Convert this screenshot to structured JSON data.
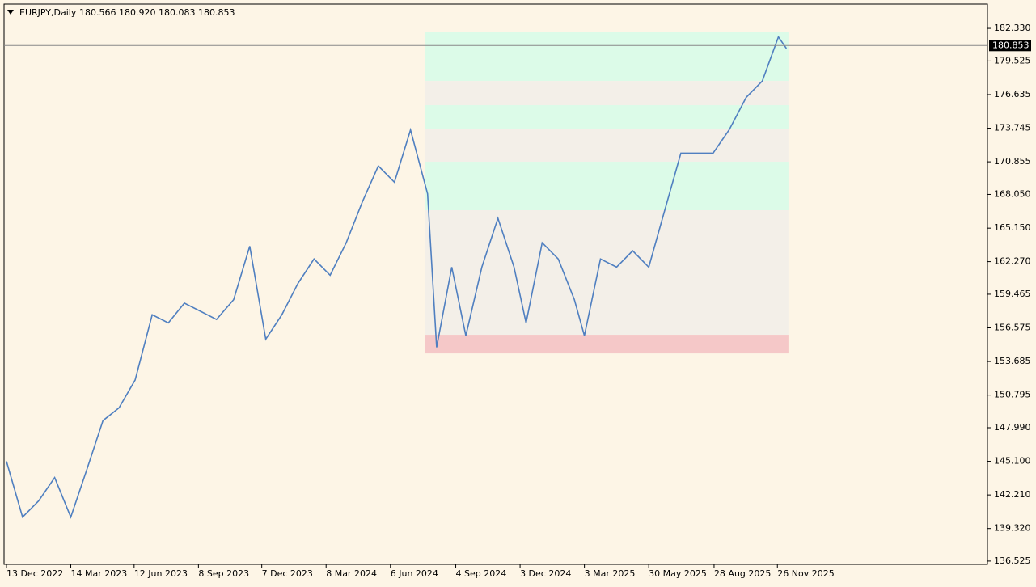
{
  "chart_data": {
    "type": "line",
    "title": "EURJPY,Daily",
    "ohlc": "180.566 180.920 180.083 180.853",
    "last_price": 180.853,
    "color": "#4f7fc0",
    "x": [
      0,
      16,
      32,
      48,
      64,
      80,
      96,
      112,
      128,
      145,
      161,
      177,
      193,
      209,
      226,
      242,
      258,
      274,
      290,
      306,
      322,
      338,
      354,
      370,
      386,
      402,
      419,
      428,
      443,
      457,
      473,
      489,
      505,
      517,
      533,
      549,
      565,
      575,
      591,
      607,
      623,
      639,
      655,
      671,
      687,
      703,
      719,
      736,
      752,
      768,
      776
    ],
    "values": [
      145.1,
      140.3,
      141.7,
      143.7,
      140.3,
      144.4,
      148.6,
      149.7,
      152.1,
      157.7,
      157.0,
      158.7,
      158.0,
      157.3,
      159.0,
      163.6,
      155.6,
      157.7,
      160.4,
      162.5,
      161.1,
      163.9,
      167.4,
      170.5,
      169.1,
      173.6,
      168.1,
      154.9,
      161.8,
      155.9,
      161.8,
      166.0,
      161.8,
      157.0,
      163.9,
      162.5,
      159.0,
      155.9,
      162.5,
      161.8,
      163.2,
      161.8,
      166.7,
      171.6,
      171.6,
      171.6,
      173.6,
      176.4,
      177.8,
      181.6,
      180.6
    ],
    "zones": [
      {
        "from": 177.81,
        "to": 182.05,
        "color": "#dcfbe8"
      },
      {
        "from": 175.73,
        "to": 177.81,
        "color": "#f3efe8"
      },
      {
        "from": 173.64,
        "to": 175.73,
        "color": "#dcfbe8"
      },
      {
        "from": 170.86,
        "to": 173.64,
        "color": "#f3efe8"
      },
      {
        "from": 166.69,
        "to": 170.86,
        "color": "#dcfbe8"
      },
      {
        "from": 155.98,
        "to": 166.69,
        "color": "#f3efe8"
      },
      {
        "from": 154.38,
        "to": 155.98,
        "color": "#f5c8c8"
      }
    ],
    "zone_x": [
      416,
      778
    ],
    "xlim": [
      -2.4,
      976
    ],
    "xticks": [
      {
        "value": 0,
        "label": "13 Dec 2022"
      },
      {
        "value": 64,
        "label": "14 Mar 2023"
      },
      {
        "value": 127,
        "label": "12 Jun 2023"
      },
      {
        "value": 191,
        "label": "8 Sep 2023"
      },
      {
        "value": 254,
        "label": "7 Dec 2023"
      },
      {
        "value": 318,
        "label": "8 Mar 2024"
      },
      {
        "value": 382,
        "label": "6 Jun 2024"
      },
      {
        "value": 447,
        "label": "4 Sep 2024"
      },
      {
        "value": 511,
        "label": "3 Dec 2024"
      },
      {
        "value": 575,
        "label": "3 Mar 2025"
      },
      {
        "value": 639,
        "label": "30 May 2025"
      },
      {
        "value": 704,
        "label": "28 Aug 2025"
      },
      {
        "value": 767,
        "label": "26 Nov 2025"
      }
    ],
    "ylim": [
      136.24,
      184.42
    ],
    "yticks": [
      {
        "value": 182.33,
        "label": "182.330"
      },
      179.525,
      176.635,
      173.745,
      170.855,
      {
        "value": 168.05,
        "label": "168.050"
      },
      {
        "value": 165.15,
        "label": "165.150"
      },
      {
        "value": 162.27,
        "label": "162.270"
      },
      159.465,
      156.575,
      153.685,
      150.795,
      {
        "value": 147.99,
        "label": "147.990"
      },
      {
        "value": 145.1,
        "label": "145.100"
      },
      {
        "value": 142.21,
        "label": "142.210"
      },
      {
        "value": 139.32,
        "label": "139.320"
      },
      136.525
    ],
    "grid": false
  }
}
